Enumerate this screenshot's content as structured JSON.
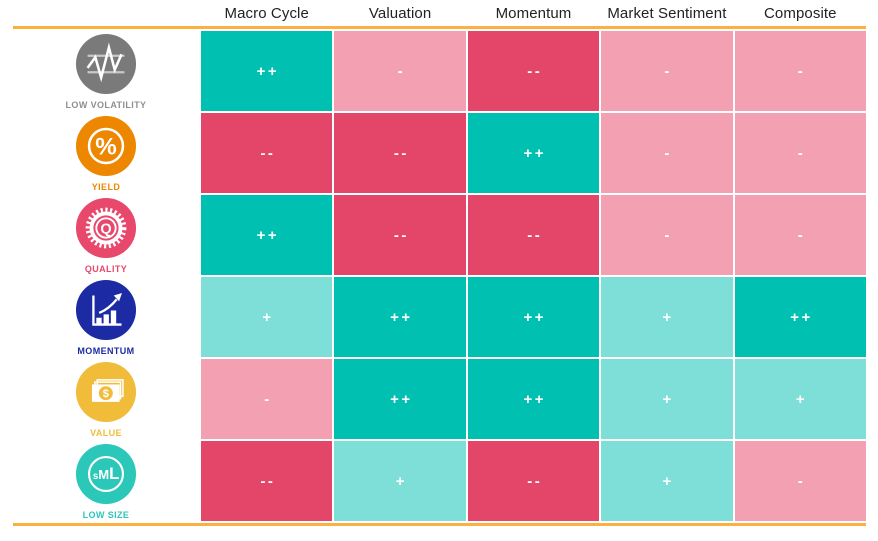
{
  "header": {
    "columns": [
      "Macro Cycle",
      "Valuation",
      "Momentum",
      "Market Sentiment",
      "Composite"
    ]
  },
  "colors": {
    "strong_positive": "#00C1B1",
    "weak_positive": "#7EDFD8",
    "strong_negative": "#E34668",
    "weak_negative": "#F2A0B2",
    "divider": "#FBB040"
  },
  "rows": [
    {
      "label": "LOW VOLATILITY",
      "icon": "volatility-wave-icon",
      "icon_color": "#7A7A7A",
      "label_color": "#8F8F8F",
      "cells": [
        {
          "value": "++",
          "rating": "strong_positive"
        },
        {
          "value": "-",
          "rating": "weak_negative"
        },
        {
          "value": "--",
          "rating": "strong_negative"
        },
        {
          "value": "-",
          "rating": "weak_negative"
        },
        {
          "value": "-",
          "rating": "weak_negative"
        }
      ]
    },
    {
      "label": "YIELD",
      "icon": "percent-icon",
      "icon_color": "#EE8700",
      "label_color": "#EE8700",
      "cells": [
        {
          "value": "--",
          "rating": "strong_negative"
        },
        {
          "value": "--",
          "rating": "strong_negative"
        },
        {
          "value": "++",
          "rating": "strong_positive"
        },
        {
          "value": "-",
          "rating": "weak_negative"
        },
        {
          "value": "-",
          "rating": "weak_negative"
        }
      ]
    },
    {
      "label": "QUALITY",
      "icon": "quality-seal-icon",
      "icon_color": "#E8486B",
      "label_color": "#E8486B",
      "cells": [
        {
          "value": "++",
          "rating": "strong_positive"
        },
        {
          "value": "--",
          "rating": "strong_negative"
        },
        {
          "value": "--",
          "rating": "strong_negative"
        },
        {
          "value": "-",
          "rating": "weak_negative"
        },
        {
          "value": "-",
          "rating": "weak_negative"
        }
      ]
    },
    {
      "label": "MOMENTUM",
      "icon": "momentum-chart-icon",
      "icon_color": "#1C2BA3",
      "label_color": "#1C2BA3",
      "cells": [
        {
          "value": "+",
          "rating": "weak_positive"
        },
        {
          "value": "++",
          "rating": "strong_positive"
        },
        {
          "value": "++",
          "rating": "strong_positive"
        },
        {
          "value": "+",
          "rating": "weak_positive"
        },
        {
          "value": "++",
          "rating": "strong_positive"
        }
      ]
    },
    {
      "label": "VALUE",
      "icon": "banknote-icon",
      "icon_color": "#F0BC3A",
      "label_color": "#F0BC3A",
      "cells": [
        {
          "value": "-",
          "rating": "weak_negative"
        },
        {
          "value": "++",
          "rating": "strong_positive"
        },
        {
          "value": "++",
          "rating": "strong_positive"
        },
        {
          "value": "+",
          "rating": "weak_positive"
        },
        {
          "value": "+",
          "rating": "weak_positive"
        }
      ]
    },
    {
      "label": "LOW SIZE",
      "icon": "size-sml-icon",
      "icon_color": "#2BC8B9",
      "label_color": "#2BC8B9",
      "cells": [
        {
          "value": "--",
          "rating": "strong_negative"
        },
        {
          "value": "+",
          "rating": "weak_positive"
        },
        {
          "value": "--",
          "rating": "strong_negative"
        },
        {
          "value": "+",
          "rating": "weak_positive"
        },
        {
          "value": "-",
          "rating": "weak_negative"
        }
      ]
    }
  ]
}
